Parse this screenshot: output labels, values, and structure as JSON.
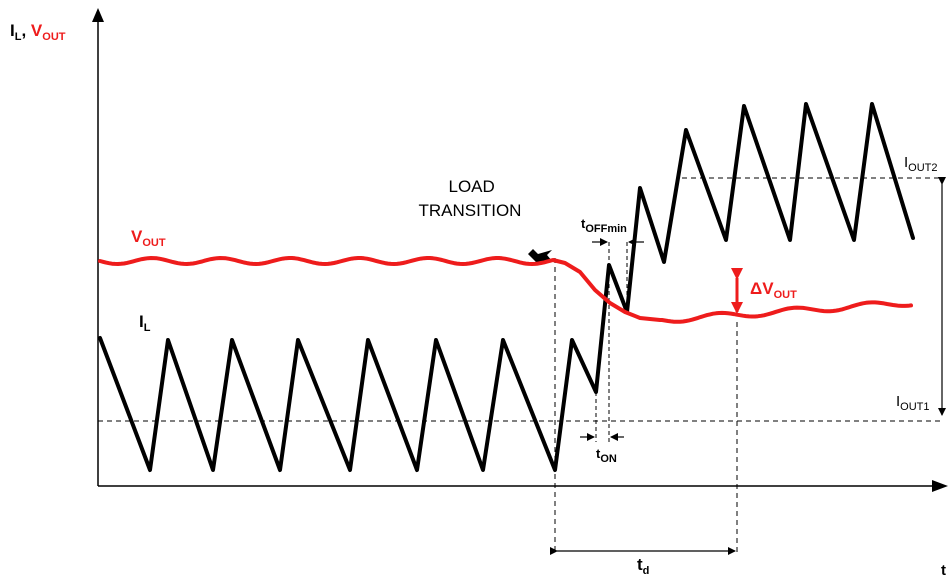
{
  "axes": {
    "y_label": {
      "main": "I",
      "sub": "L",
      "sep": ", ",
      "main2": "V",
      "sub2": "OUT"
    },
    "x_label": "t"
  },
  "labels": {
    "vout": {
      "main": "V",
      "sub": "OUT"
    },
    "il": {
      "main": "I",
      "sub": "L"
    },
    "load_transition": [
      "LOAD",
      "TRANSITION"
    ],
    "toffmin": {
      "main": "t",
      "sub": "OFFmin"
    },
    "ton": {
      "main": "t",
      "sub": "ON"
    },
    "td": {
      "main": "t",
      "sub": "d"
    },
    "delta_vout": {
      "main": "ΔV",
      "sub": "OUT"
    },
    "iout1": {
      "main": "I",
      "sub": "OUT1"
    },
    "iout2": {
      "main": "I",
      "sub": "OUT2"
    }
  },
  "colors": {
    "vout": "#ee1c1c",
    "il": "#000000",
    "axes": "#000000"
  }
}
